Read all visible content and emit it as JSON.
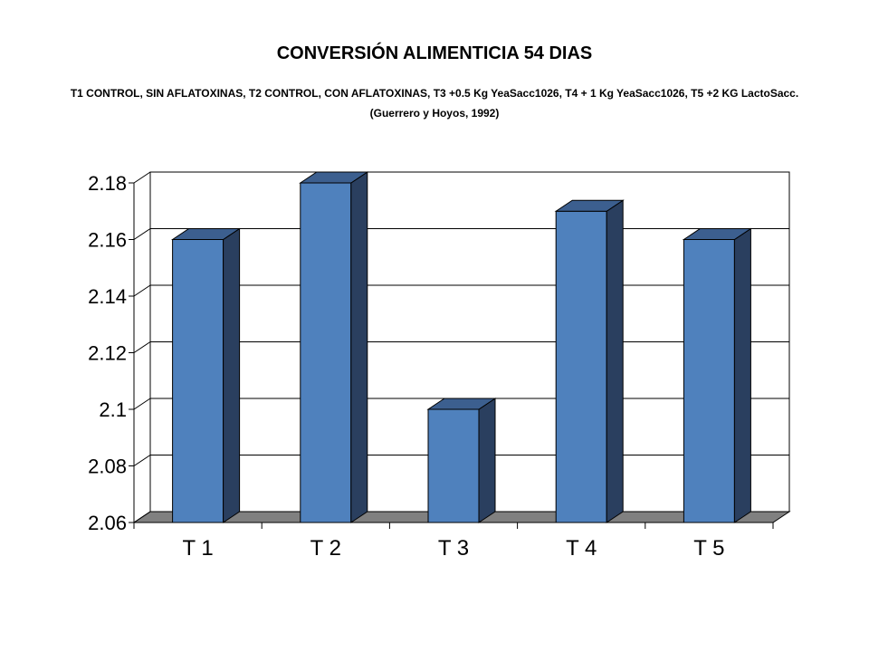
{
  "chart_data": {
    "type": "bar",
    "title": "CONVERSIÓN ALIMENTICIA 54 DIAS",
    "subtitle": "T1 CONTROL, SIN AFLATOXINAS, T2 CONTROL, CON AFLATOXINAS, T3 +0.5 Kg YeaSacc1026, T4 + 1 Kg YeaSacc1026, T5 +2 KG LactoSacc. (Guerrero y Hoyos, 1992)",
    "categories": [
      "T 1",
      "T 2",
      "T 3",
      "T 4",
      "T 5"
    ],
    "values": [
      2.16,
      2.18,
      2.1,
      2.17,
      2.16
    ],
    "ylim": [
      2.06,
      2.18
    ],
    "yticks": [
      "2.06",
      "2.08",
      "2.1",
      "2.12",
      "2.14",
      "2.16",
      "2.18"
    ],
    "grid": true,
    "colors": {
      "bar_front": "#4f81bd",
      "bar_side": "#2a3f5f",
      "bar_top": "#3c5f8f",
      "floor": "#808080"
    }
  }
}
